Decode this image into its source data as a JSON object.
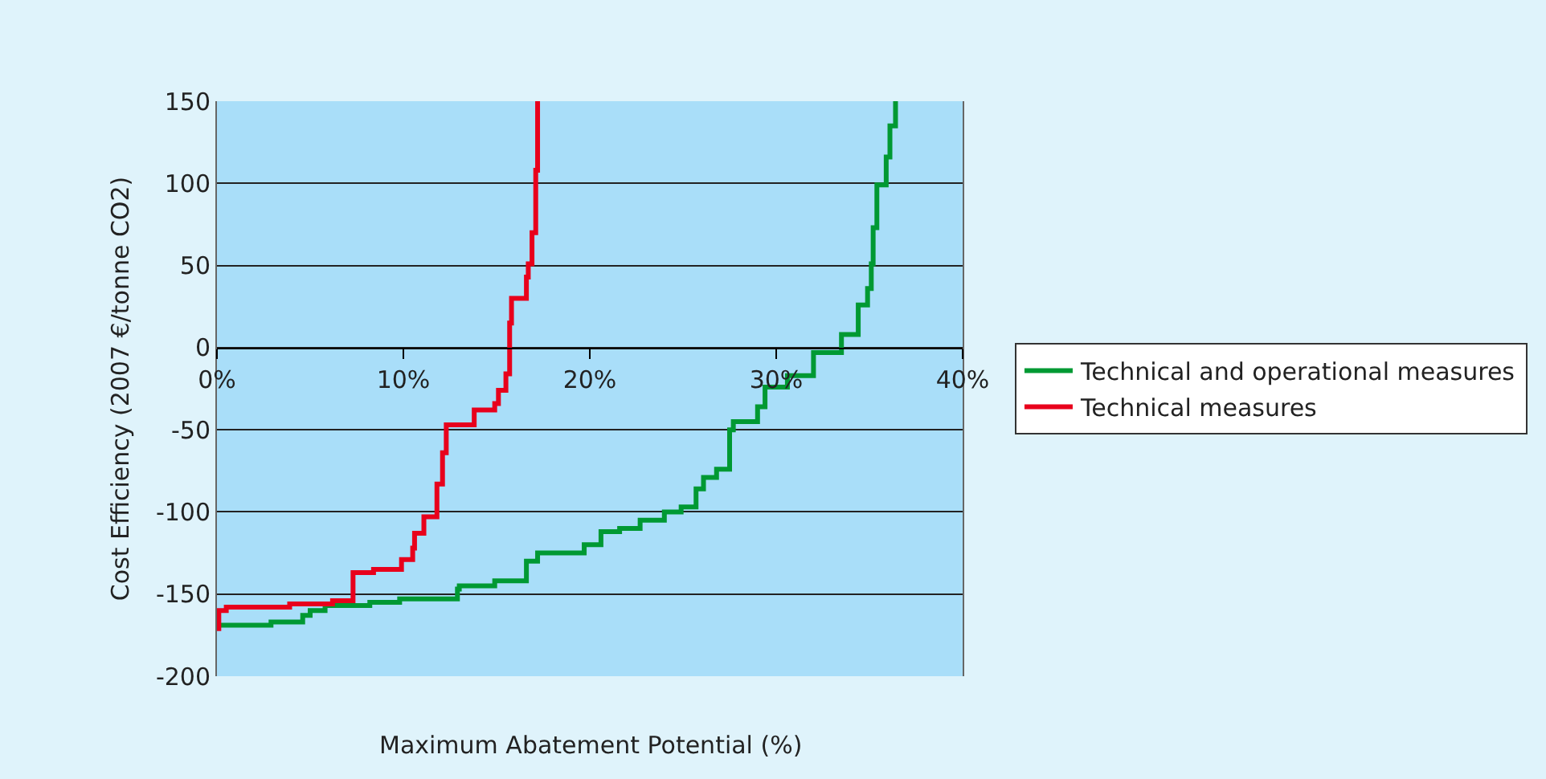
{
  "chart_data": {
    "type": "step",
    "xlabel": "Maximum Abatement Potential (%)",
    "ylabel": "Cost Efficiency (2007 €/tonne CO2)",
    "xlim": [
      0,
      40
    ],
    "xticks": [
      {
        "value": 0,
        "label": "0%"
      },
      {
        "value": 10,
        "label": "10%"
      },
      {
        "value": 20,
        "label": "20%"
      },
      {
        "value": 30,
        "label": "30%"
      },
      {
        "value": 40,
        "label": "40%"
      }
    ],
    "ylim": [
      -200,
      150
    ],
    "yticks": [
      -200,
      -150,
      -100,
      -50,
      0,
      50,
      100,
      150
    ],
    "grid": "y",
    "legend": "right",
    "series": [
      {
        "name": "Technical and operational measures",
        "color": "#009933",
        "x": [
          0,
          2.9,
          4.6,
          5.0,
          5.8,
          8.2,
          9.8,
          12.9,
          13.0,
          14.9,
          16.6,
          17.2,
          19.7,
          20.6,
          21.6,
          22.7,
          24.0,
          24.9,
          25.7,
          26.1,
          26.8,
          27.5,
          27.7,
          29.0,
          29.4,
          30.6,
          32.0,
          32.1,
          33.5,
          34.4,
          34.9,
          35.1,
          35.2,
          35.4,
          35.9,
          36.1,
          36.4
        ],
        "values": [
          -169,
          -167,
          -163,
          -160,
          -157,
          -155,
          -153,
          -147,
          -145,
          -142,
          -130,
          -125,
          -120,
          -112,
          -110,
          -105,
          -100,
          -97,
          -86,
          -79,
          -74,
          -50,
          -45,
          -36,
          -24,
          -17,
          -3,
          -3,
          8,
          26,
          36,
          51,
          73,
          99,
          116,
          135,
          150
        ]
      },
      {
        "name": "Technical measures",
        "color": "#e8001c",
        "x": [
          0,
          0.1,
          0.5,
          3.9,
          6.2,
          7.3,
          8.4,
          9.9,
          10.5,
          10.6,
          11.1,
          11.8,
          12.1,
          12.3,
          13.8,
          14.9,
          15.1,
          15.5,
          15.7,
          15.8,
          16.0,
          16.6,
          16.7,
          16.9,
          17.1,
          17.2
        ],
        "values": [
          -171,
          -160,
          -158,
          -156,
          -154,
          -137,
          -135,
          -129,
          -122,
          -113,
          -103,
          -83,
          -64,
          -47,
          -38,
          -34,
          -26,
          -16,
          15,
          30,
          30,
          43,
          51,
          70,
          108,
          150
        ]
      }
    ]
  }
}
